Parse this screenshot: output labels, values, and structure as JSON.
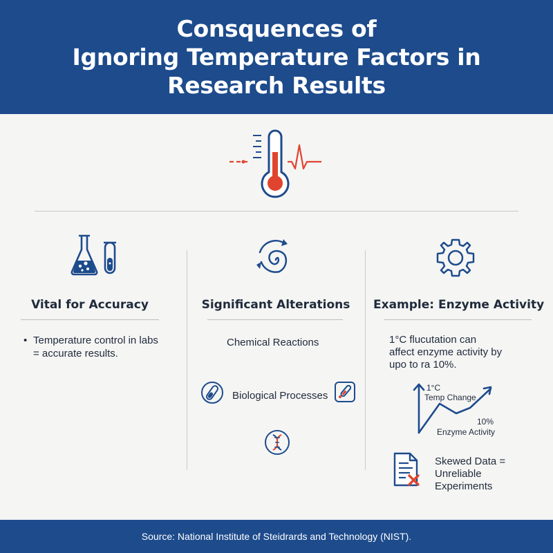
{
  "header": {
    "title_lines": [
      "Consquences of",
      "Ignoring Temperature Factors in",
      "Research Results"
    ]
  },
  "icons": {
    "hero": "thermometer-heartbeat-icon",
    "col1": "flask-test-tube-icon",
    "col2": "spiral-cycle-icon",
    "col3": "gear-icon",
    "bio_left": "test-tube-circle-icon",
    "bio_right": "pipette-square-icon",
    "dna": "dna-circle-icon",
    "doc": "document-error-icon"
  },
  "columns": {
    "accuracy": {
      "title": "Vital for Accuracy",
      "bullet_mark": "•",
      "bullet_lines": [
        "Temperature control in labs",
        "= accurate results."
      ]
    },
    "alterations": {
      "title": "Significant Alterations",
      "item1": "Chemical Reactions",
      "item2": "Biological Processes"
    },
    "enzyme": {
      "title": "Example: Enzyme Activity",
      "desc_lines": [
        "1°C flucutation can",
        "affect enzyme activity by",
        "upo to ra 10%."
      ],
      "graph_label1_lines": [
        "1°C",
        "Temp Change"
      ],
      "graph_label2_lines": [
        "10%",
        "Enzyme Activity"
      ],
      "skewed_lines": [
        "Skewed Data =",
        "Unreliable",
        "Experiments"
      ]
    }
  },
  "footer": {
    "source": "Source: National Institute of Steidrards and Technology (NIST)."
  },
  "colors": {
    "primary_blue": "#1d4b8c",
    "accent_red": "#e0442e",
    "background": "#f5f5f4"
  }
}
